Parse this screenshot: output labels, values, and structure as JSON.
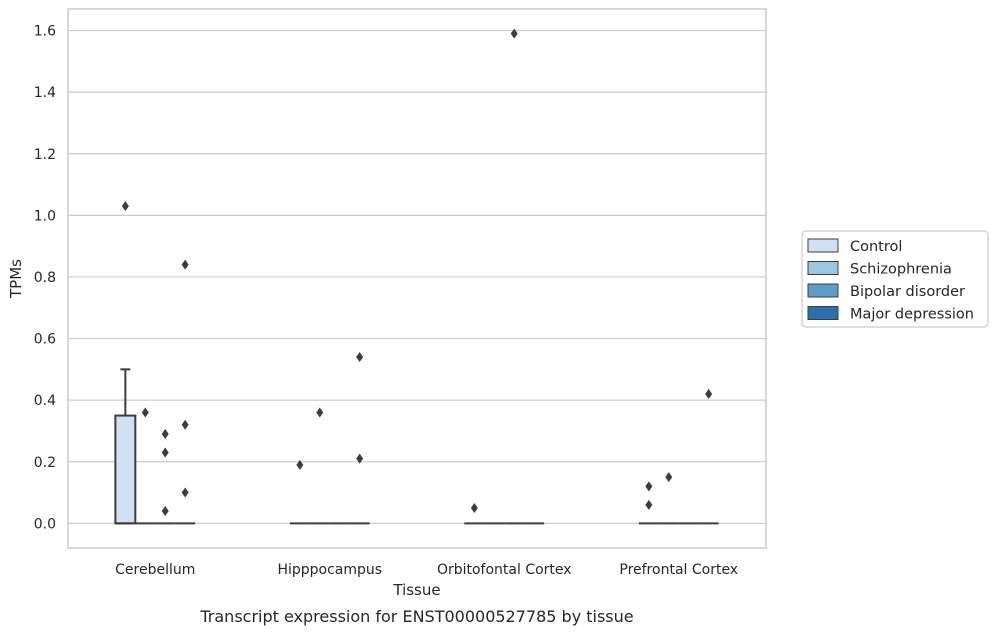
{
  "caption": "Transcript expression for ENST00000527785 by tissue",
  "chart_data": {
    "type": "box",
    "title": "",
    "xlabel": "Tissue",
    "ylabel": "TPMs",
    "ylim": [
      -0.08,
      1.67
    ],
    "yticks": [
      "0.0",
      "0.2",
      "0.4",
      "0.6",
      "0.8",
      "1.0",
      "1.2",
      "1.4",
      "1.6"
    ],
    "grid": "horizontal",
    "legend_position": "right",
    "categories": [
      "Cerebellum",
      "Hipppocampus",
      "Orbitofontal Cortex",
      "Prefrontal Cortex"
    ],
    "series": [
      {
        "name": "Control",
        "color": "#d0e1f2",
        "boxes": [
          {
            "q1": 0.0,
            "median": 0.0,
            "q3": 0.35,
            "whisker_low": 0.0,
            "whisker_high": 0.5,
            "outliers": [
              1.03
            ]
          },
          {
            "q1": 0.0,
            "median": 0.0,
            "q3": 0.0,
            "whisker_low": 0.0,
            "whisker_high": 0.0,
            "outliers": [
              0.19
            ]
          },
          {
            "q1": 0.0,
            "median": 0.0,
            "q3": 0.0,
            "whisker_low": 0.0,
            "whisker_high": 0.0,
            "outliers": [
              0.05
            ]
          },
          {
            "q1": 0.0,
            "median": 0.0,
            "q3": 0.0,
            "whisker_low": 0.0,
            "whisker_high": 0.0,
            "outliers": [
              0.12,
              0.06
            ]
          }
        ]
      },
      {
        "name": "Schizophrenia",
        "color": "#9ac8e0",
        "boxes": [
          {
            "q1": 0.0,
            "median": 0.0,
            "q3": 0.0,
            "whisker_low": 0.0,
            "whisker_high": 0.0,
            "outliers": [
              0.36
            ]
          },
          {
            "q1": 0.0,
            "median": 0.0,
            "q3": 0.0,
            "whisker_low": 0.0,
            "whisker_high": 0.0,
            "outliers": [
              0.36
            ]
          },
          {
            "q1": 0.0,
            "median": 0.0,
            "q3": 0.0,
            "whisker_low": 0.0,
            "whisker_high": 0.0,
            "outliers": []
          },
          {
            "q1": 0.0,
            "median": 0.0,
            "q3": 0.0,
            "whisker_low": 0.0,
            "whisker_high": 0.0,
            "outliers": [
              0.15
            ]
          }
        ]
      },
      {
        "name": "Bipolar disorder",
        "color": "#5a9ec9",
        "boxes": [
          {
            "q1": 0.0,
            "median": 0.0,
            "q3": 0.0,
            "whisker_low": 0.0,
            "whisker_high": 0.0,
            "outliers": [
              0.29,
              0.23,
              0.04
            ]
          },
          {
            "q1": 0.0,
            "median": 0.0,
            "q3": 0.0,
            "whisker_low": 0.0,
            "whisker_high": 0.0,
            "outliers": []
          },
          {
            "q1": 0.0,
            "median": 0.0,
            "q3": 0.0,
            "whisker_low": 0.0,
            "whisker_high": 0.0,
            "outliers": [
              1.59
            ]
          },
          {
            "q1": 0.0,
            "median": 0.0,
            "q3": 0.0,
            "whisker_low": 0.0,
            "whisker_high": 0.0,
            "outliers": []
          }
        ]
      },
      {
        "name": "Major depression",
        "color": "#2d6fac",
        "boxes": [
          {
            "q1": 0.0,
            "median": 0.0,
            "q3": 0.0,
            "whisker_low": 0.0,
            "whisker_high": 0.0,
            "outliers": [
              0.84,
              0.32,
              0.1
            ]
          },
          {
            "q1": 0.0,
            "median": 0.0,
            "q3": 0.0,
            "whisker_low": 0.0,
            "whisker_high": 0.0,
            "outliers": [
              0.54,
              0.21
            ]
          },
          {
            "q1": 0.0,
            "median": 0.0,
            "q3": 0.0,
            "whisker_low": 0.0,
            "whisker_high": 0.0,
            "outliers": []
          },
          {
            "q1": 0.0,
            "median": 0.0,
            "q3": 0.0,
            "whisker_low": 0.0,
            "whisker_high": 0.0,
            "outliers": [
              0.42
            ]
          }
        ]
      }
    ]
  }
}
